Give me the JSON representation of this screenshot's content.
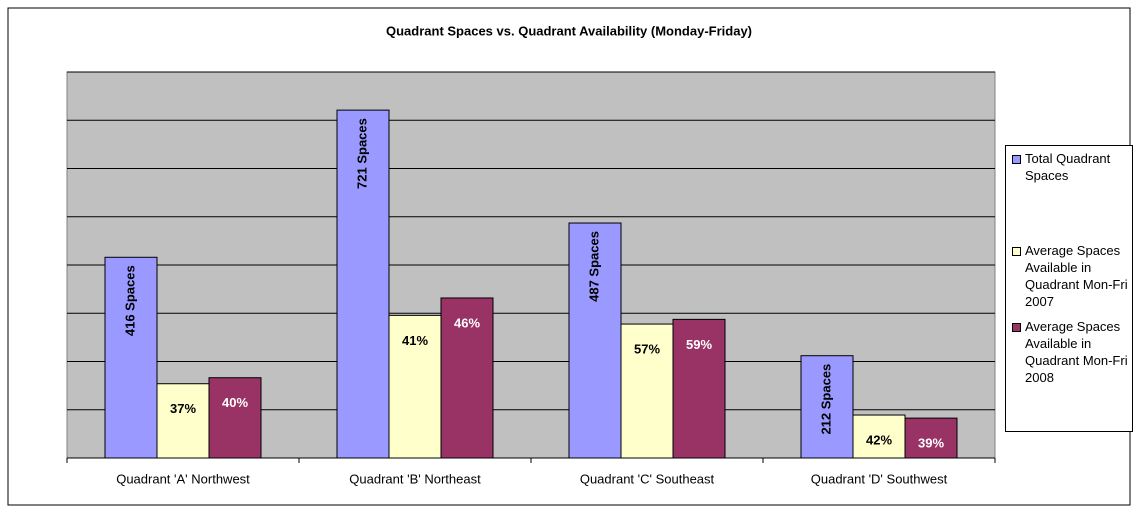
{
  "chart_data": {
    "type": "bar",
    "title": "Quadrant Spaces vs. Quadrant Availability (Monday-Friday)",
    "categories": [
      "Quadrant 'A' Northwest",
      "Quadrant 'B' Northeast",
      "Quadrant 'C' Southeast",
      "Quadrant 'D' Southwest"
    ],
    "series": [
      {
        "name": "Total Quadrant Spaces",
        "color": "#9999ff",
        "values": [
          416,
          721,
          487,
          212
        ],
        "value_labels": [
          "416 Spaces",
          "721 Spaces",
          "487 Spaces",
          "212 Spaces"
        ]
      },
      {
        "name": "Average Spaces Available in Quadrant Mon-Fri 2007",
        "color": "#ffffcc",
        "values": [
          37,
          41,
          57,
          42
        ],
        "value_labels": [
          "37%",
          "41%",
          "57%",
          "42%"
        ]
      },
      {
        "name": "Average Spaces Available in Quadrant Mon-Fri 2008",
        "color": "#993366",
        "values": [
          40,
          46,
          59,
          39
        ],
        "value_labels": [
          "40%",
          "46%",
          "59%",
          "39%"
        ]
      }
    ],
    "ylim": [
      0,
      800
    ],
    "yticks": [
      0,
      100,
      200,
      300,
      400,
      500,
      600,
      700,
      800
    ],
    "grid": true,
    "legend": "right"
  }
}
